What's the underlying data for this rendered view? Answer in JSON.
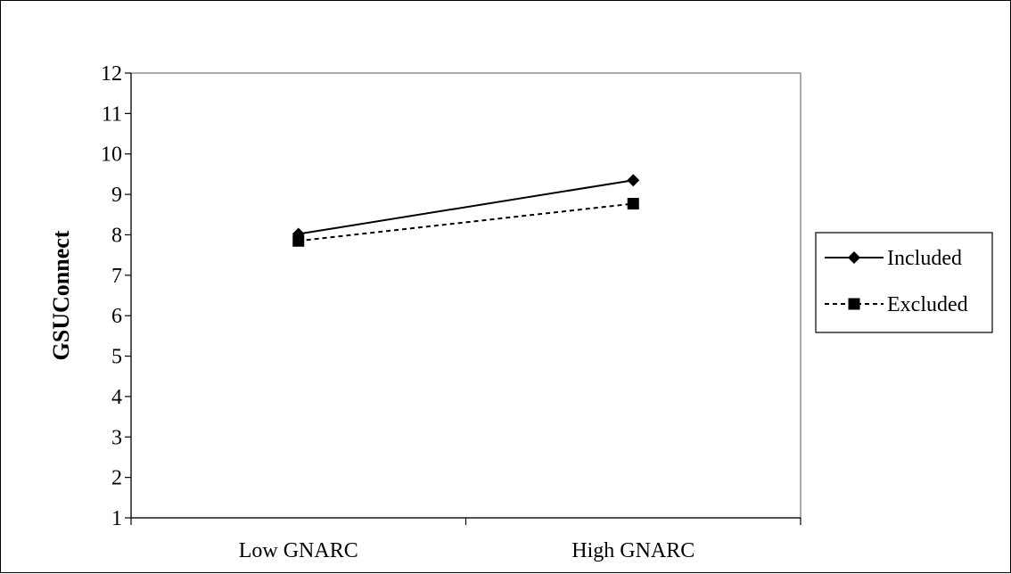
{
  "chart_data": {
    "type": "line",
    "title": "",
    "xlabel": "",
    "ylabel": "GSUConnect",
    "categories": [
      "Low GNARC",
      "High GNARC"
    ],
    "ylim": [
      1,
      12
    ],
    "yticks": [
      1,
      2,
      3,
      4,
      5,
      6,
      7,
      8,
      9,
      10,
      11,
      12
    ],
    "grid": false,
    "legend_position": "right",
    "series": [
      {
        "name": "Included",
        "values": [
          8.02,
          9.35
        ],
        "line_style": "solid",
        "marker": "diamond",
        "color": "#000000"
      },
      {
        "name": "Excluded",
        "values": [
          7.85,
          8.77
        ],
        "line_style": "dashed",
        "marker": "square",
        "color": "#000000"
      }
    ]
  }
}
